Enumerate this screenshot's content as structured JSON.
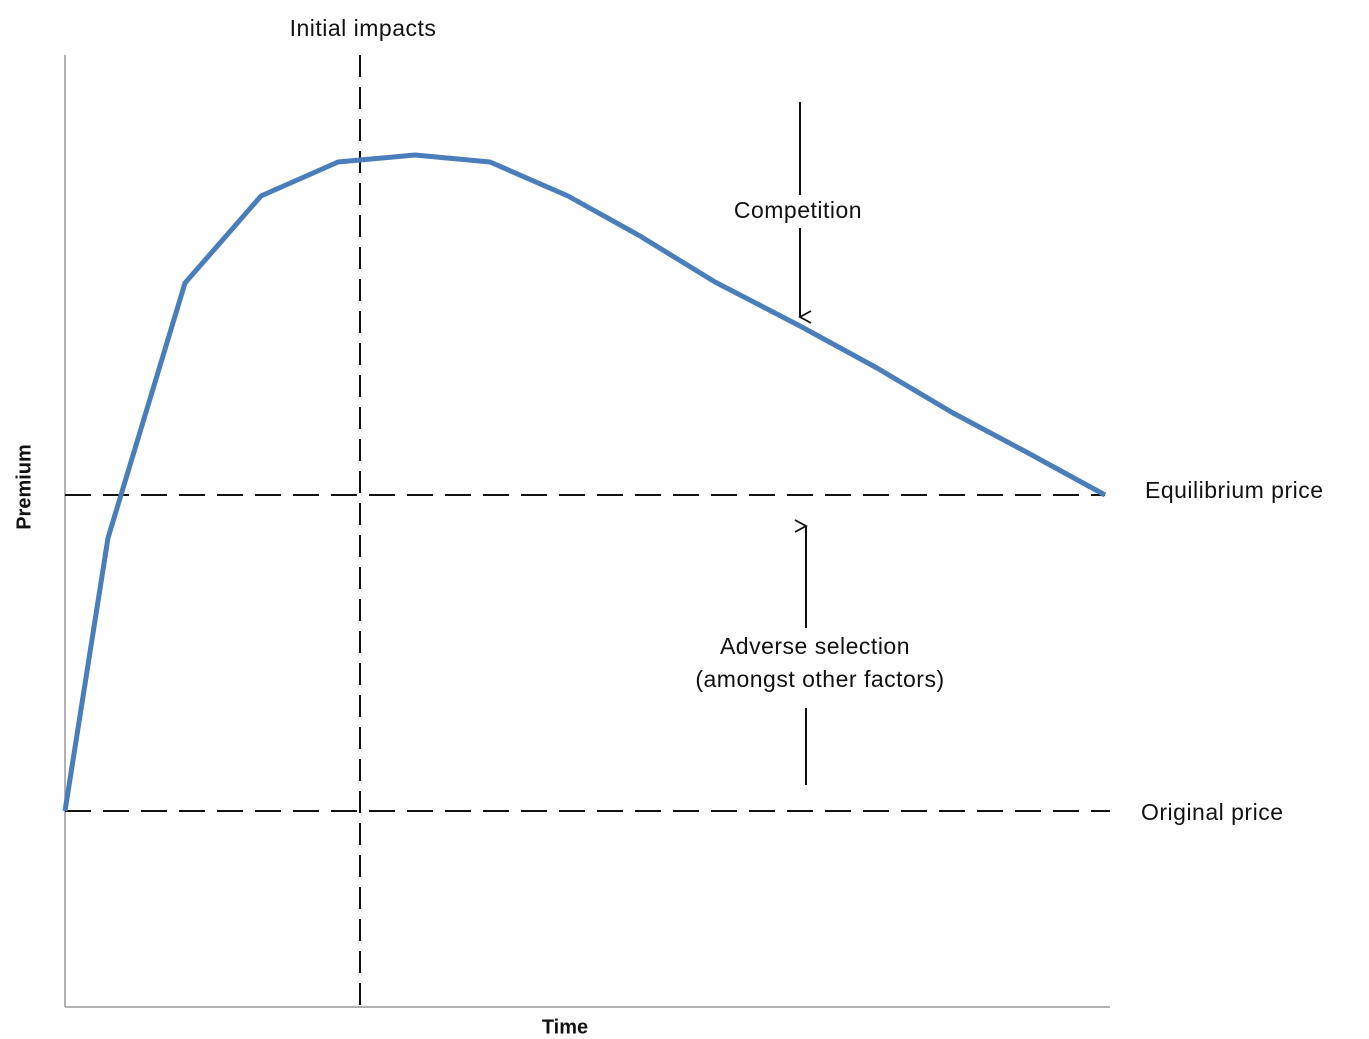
{
  "labels": {
    "initial_impacts": "Initial impacts",
    "competition": "Competition",
    "equilibrium_price": "Equilibrium price",
    "adverse_selection": "Adverse selection",
    "adverse_selection_note": "(amongst other factors)",
    "original_price": "Original price"
  },
  "axes": {
    "y_label": "Premium",
    "x_label": "Time"
  }
}
